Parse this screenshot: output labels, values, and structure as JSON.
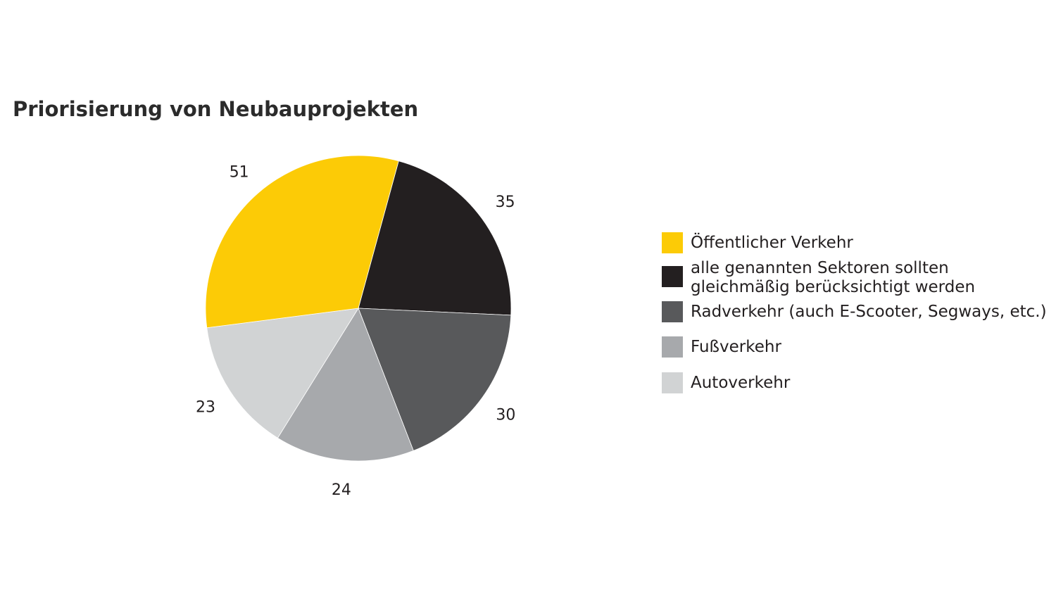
{
  "chart_data": {
    "type": "pie",
    "title": "Priorisierung von Neubauprojekten",
    "slices": [
      {
        "label": "Öffentlicher Verkehr",
        "value": 51,
        "color": "#fccb06"
      },
      {
        "label": "alle genannten Sektoren sollten gleichmäßig berücksichtigt werden",
        "value": 35,
        "color": "#231f20"
      },
      {
        "label": "Radverkehr (auch E-Scooter, Segways, etc.)",
        "value": 30,
        "color": "#58595b"
      },
      {
        "label": "Fußverkehr",
        "value": 24,
        "color": "#a7a9ac"
      },
      {
        "label": "Autoverkehr",
        "value": 23,
        "color": "#d1d3d4"
      }
    ],
    "legend_position": "right"
  },
  "legend": {
    "items": [
      {
        "lines": [
          "Öffentlicher Verkehr"
        ]
      },
      {
        "lines": [
          "alle genannten Sektoren sollten",
          "gleichmäßig berücksichtigt werden"
        ]
      },
      {
        "lines": [
          "Radverkehr (auch E-Scooter, Segways, etc.)"
        ]
      },
      {
        "lines": [
          "Fußverkehr"
        ]
      },
      {
        "lines": [
          "Autoverkehr"
        ]
      }
    ]
  }
}
